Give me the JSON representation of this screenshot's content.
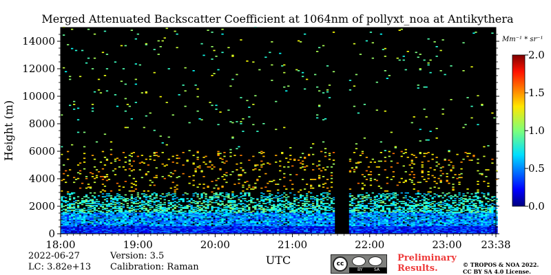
{
  "chart_data": {
    "type": "heatmap",
    "title": "Merged Attenuated Backscatter Coefficient at 1064nm of pollyxt_noa at Antikythera",
    "xlabel": "UTC",
    "ylabel": "Height (m)",
    "xlim": [
      "18:00",
      "23:38"
    ],
    "ylim": [
      0,
      15000
    ],
    "x_ticks": [
      "18:00",
      "19:00",
      "20:00",
      "21:00",
      "22:00",
      "23:00",
      "23:38"
    ],
    "y_ticks": [
      0,
      2000,
      4000,
      6000,
      8000,
      10000,
      12000,
      14000
    ],
    "colorbar": {
      "label": "Mm⁻¹ * sr⁻¹",
      "range": [
        0.0,
        2.0
      ],
      "ticks": [
        "0.0",
        "0.5",
        "1.0",
        "1.5",
        "2.0"
      ],
      "colormap": "jet"
    },
    "no_data_gap": [
      "21:32",
      "21:43"
    ],
    "background_color": "#000000",
    "layers": [
      {
        "height_range": [
          0,
          500
        ],
        "typical_value": 0.3
      },
      {
        "height_range": [
          500,
          1500
        ],
        "typical_value": 0.55
      },
      {
        "height_range": [
          1500,
          3000
        ],
        "typical_value": 0.8
      },
      {
        "height_range": [
          3000,
          6000
        ],
        "typical_value": 1.3
      },
      {
        "height_range": [
          6000,
          15000
        ],
        "typical_value": 1.0
      }
    ]
  },
  "footer": {
    "date": "2022-06-27",
    "lc": "LC: 3.82e+13",
    "version": "Version: 3.5",
    "calibration": "Calibration: Raman",
    "preliminary_line1": "Preliminary",
    "preliminary_line2": "Results.",
    "copyright_line1": "© TROPOS & NOA 2022.",
    "copyright_line2": "CC BY SA 4.0 License.",
    "license_badge_cc": "cc",
    "license_badge_by": "BY",
    "license_badge_sa": "SA",
    "preliminary_color": "#ee3a3a"
  }
}
